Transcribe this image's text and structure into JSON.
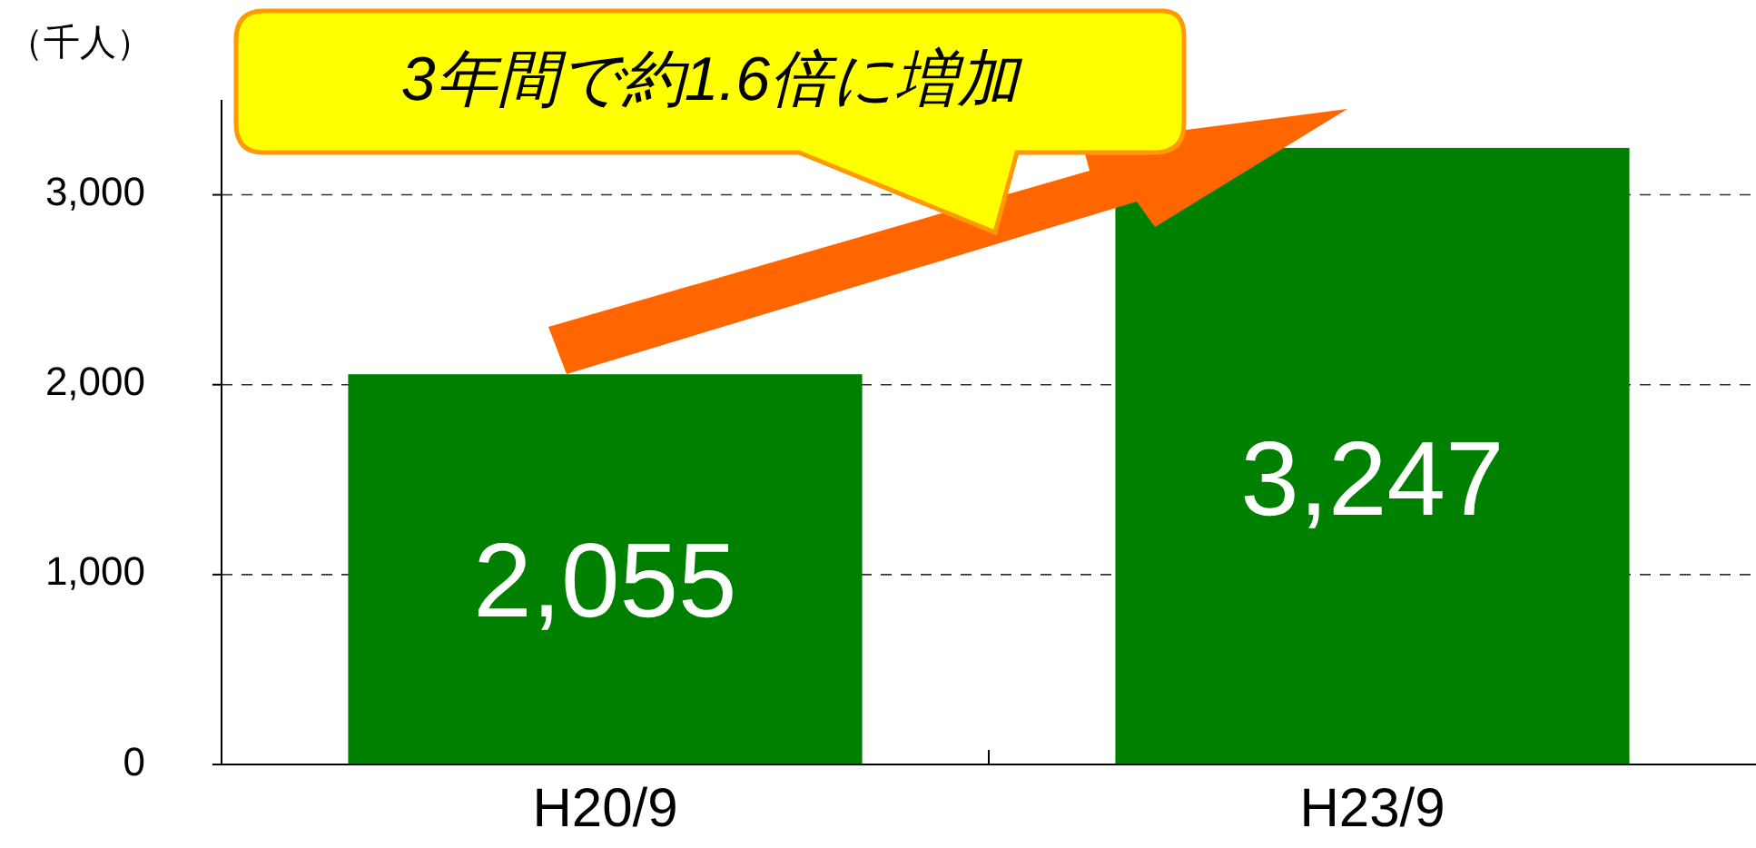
{
  "chart_data": {
    "type": "bar",
    "ylabel": "（千人）",
    "categories": [
      "H20/9",
      "H23/9"
    ],
    "values": [
      2055,
      3247
    ],
    "color": "#008000",
    "value_labels": [
      "2,055",
      "3,247"
    ],
    "ylim": [
      0,
      3500
    ],
    "yticks": [
      {
        "value": 0,
        "label": "0"
      },
      {
        "value": 1000,
        "label": "1,000"
      },
      {
        "value": 2000,
        "label": "2,000"
      },
      {
        "value": 3000,
        "label": "3,000"
      }
    ],
    "grid": "y",
    "annotations": [
      "3年間で約1.6倍に増加"
    ]
  }
}
